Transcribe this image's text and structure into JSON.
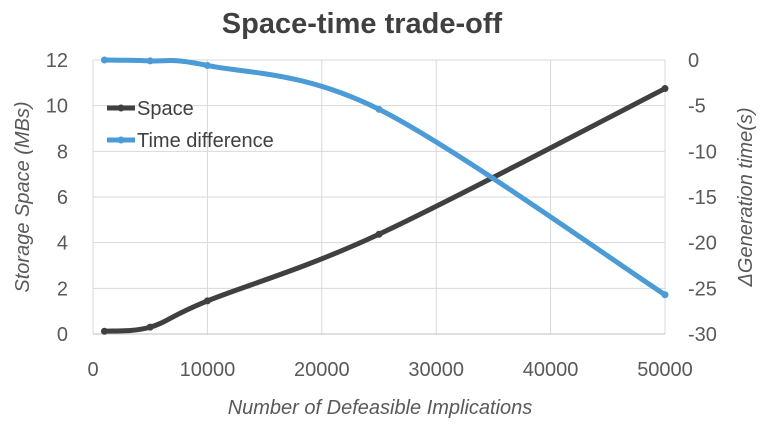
{
  "chart_data": {
    "type": "line",
    "title": "Space-time trade-off",
    "xlabel": "Number of Defeasible Implications",
    "ylabel_left": "Storage Space (MBs)",
    "ylabel_right": "ΔGeneration time(s)",
    "xlim": [
      0,
      50000
    ],
    "ylim_left": [
      0,
      12
    ],
    "ylim_right": [
      -30,
      0
    ],
    "x_ticks": [
      "0",
      "10000",
      "20000",
      "30000",
      "40000",
      "50000"
    ],
    "y_left_ticks": [
      "0",
      "2",
      "4",
      "6",
      "8",
      "10",
      "12"
    ],
    "y_right_ticks": [
      "0",
      "-5",
      "-10",
      "-15",
      "-20",
      "-25",
      "-30"
    ],
    "grid": true,
    "legend_position": "top-left",
    "colors": {
      "space": "#404040",
      "time": "#4a9bd6"
    },
    "series": [
      {
        "name": "Space",
        "axis": "left",
        "x": [
          1000,
          5000,
          10000,
          25000,
          50000
        ],
        "values": [
          0.12,
          0.3,
          1.45,
          4.37,
          10.75
        ]
      },
      {
        "name": "Time difference",
        "axis": "right",
        "x": [
          1000,
          5000,
          10000,
          25000,
          50000
        ],
        "values": [
          0,
          -0.1,
          -0.6,
          -5.4,
          -25.7
        ]
      }
    ]
  }
}
